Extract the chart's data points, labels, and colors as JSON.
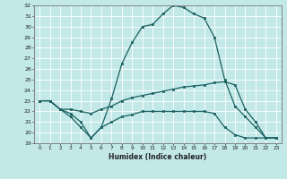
{
  "xlabel": "Humidex (Indice chaleur)",
  "bg_color": "#c2e8e8",
  "grid_color": "#ffffff",
  "line_color": "#1a6060",
  "line1_x": [
    0,
    1,
    2,
    3,
    4,
    5,
    6,
    7,
    8,
    9,
    10,
    11,
    12,
    13,
    14,
    15,
    16,
    17,
    18,
    19,
    20,
    21,
    22,
    23
  ],
  "line1_y": [
    23.0,
    23.0,
    22.2,
    21.5,
    20.5,
    19.5,
    20.5,
    23.2,
    26.5,
    28.5,
    30.0,
    30.2,
    31.2,
    32.0,
    31.8,
    31.2,
    30.8,
    29.0,
    25.0,
    22.5,
    21.5,
    20.5,
    19.5,
    19.5
  ],
  "line2_x": [
    0,
    1,
    2,
    3,
    4,
    5,
    6,
    7,
    8,
    9,
    10,
    11,
    12,
    13,
    14,
    15,
    16,
    17,
    18,
    19,
    20,
    21,
    22,
    23
  ],
  "line2_y": [
    23.0,
    23.0,
    22.2,
    22.2,
    22.0,
    21.8,
    22.2,
    22.5,
    23.0,
    23.3,
    23.5,
    23.7,
    23.9,
    24.1,
    24.3,
    24.4,
    24.5,
    24.7,
    24.8,
    24.5,
    22.2,
    21.0,
    19.5,
    19.5
  ],
  "line3_x": [
    0,
    1,
    2,
    3,
    4,
    5,
    6,
    7,
    8,
    9,
    10,
    11,
    12,
    13,
    14,
    15,
    16,
    17,
    18,
    19,
    20,
    21,
    22,
    23
  ],
  "line3_y": [
    23.0,
    23.0,
    22.2,
    21.8,
    21.0,
    19.5,
    20.5,
    21.0,
    21.5,
    21.7,
    22.0,
    22.0,
    22.0,
    22.0,
    22.0,
    22.0,
    22.0,
    21.8,
    20.5,
    19.8,
    19.5,
    19.5,
    19.5,
    19.5
  ],
  "xlim": [
    -0.5,
    23.5
  ],
  "ylim": [
    19,
    32
  ],
  "xtick_labels": [
    "0",
    "1",
    "2",
    "3",
    "4",
    "5",
    "6",
    "7",
    "8",
    "9",
    "10",
    "11",
    "12",
    "13",
    "14",
    "15",
    "16",
    "17",
    "18",
    "19",
    "20",
    "21",
    "22",
    "23"
  ],
  "ytick_labels": [
    "19",
    "20",
    "21",
    "22",
    "23",
    "24",
    "25",
    "26",
    "27",
    "28",
    "29",
    "30",
    "31",
    "32"
  ],
  "ytick_vals": [
    19,
    20,
    21,
    22,
    23,
    24,
    25,
    26,
    27,
    28,
    29,
    30,
    31,
    32
  ]
}
